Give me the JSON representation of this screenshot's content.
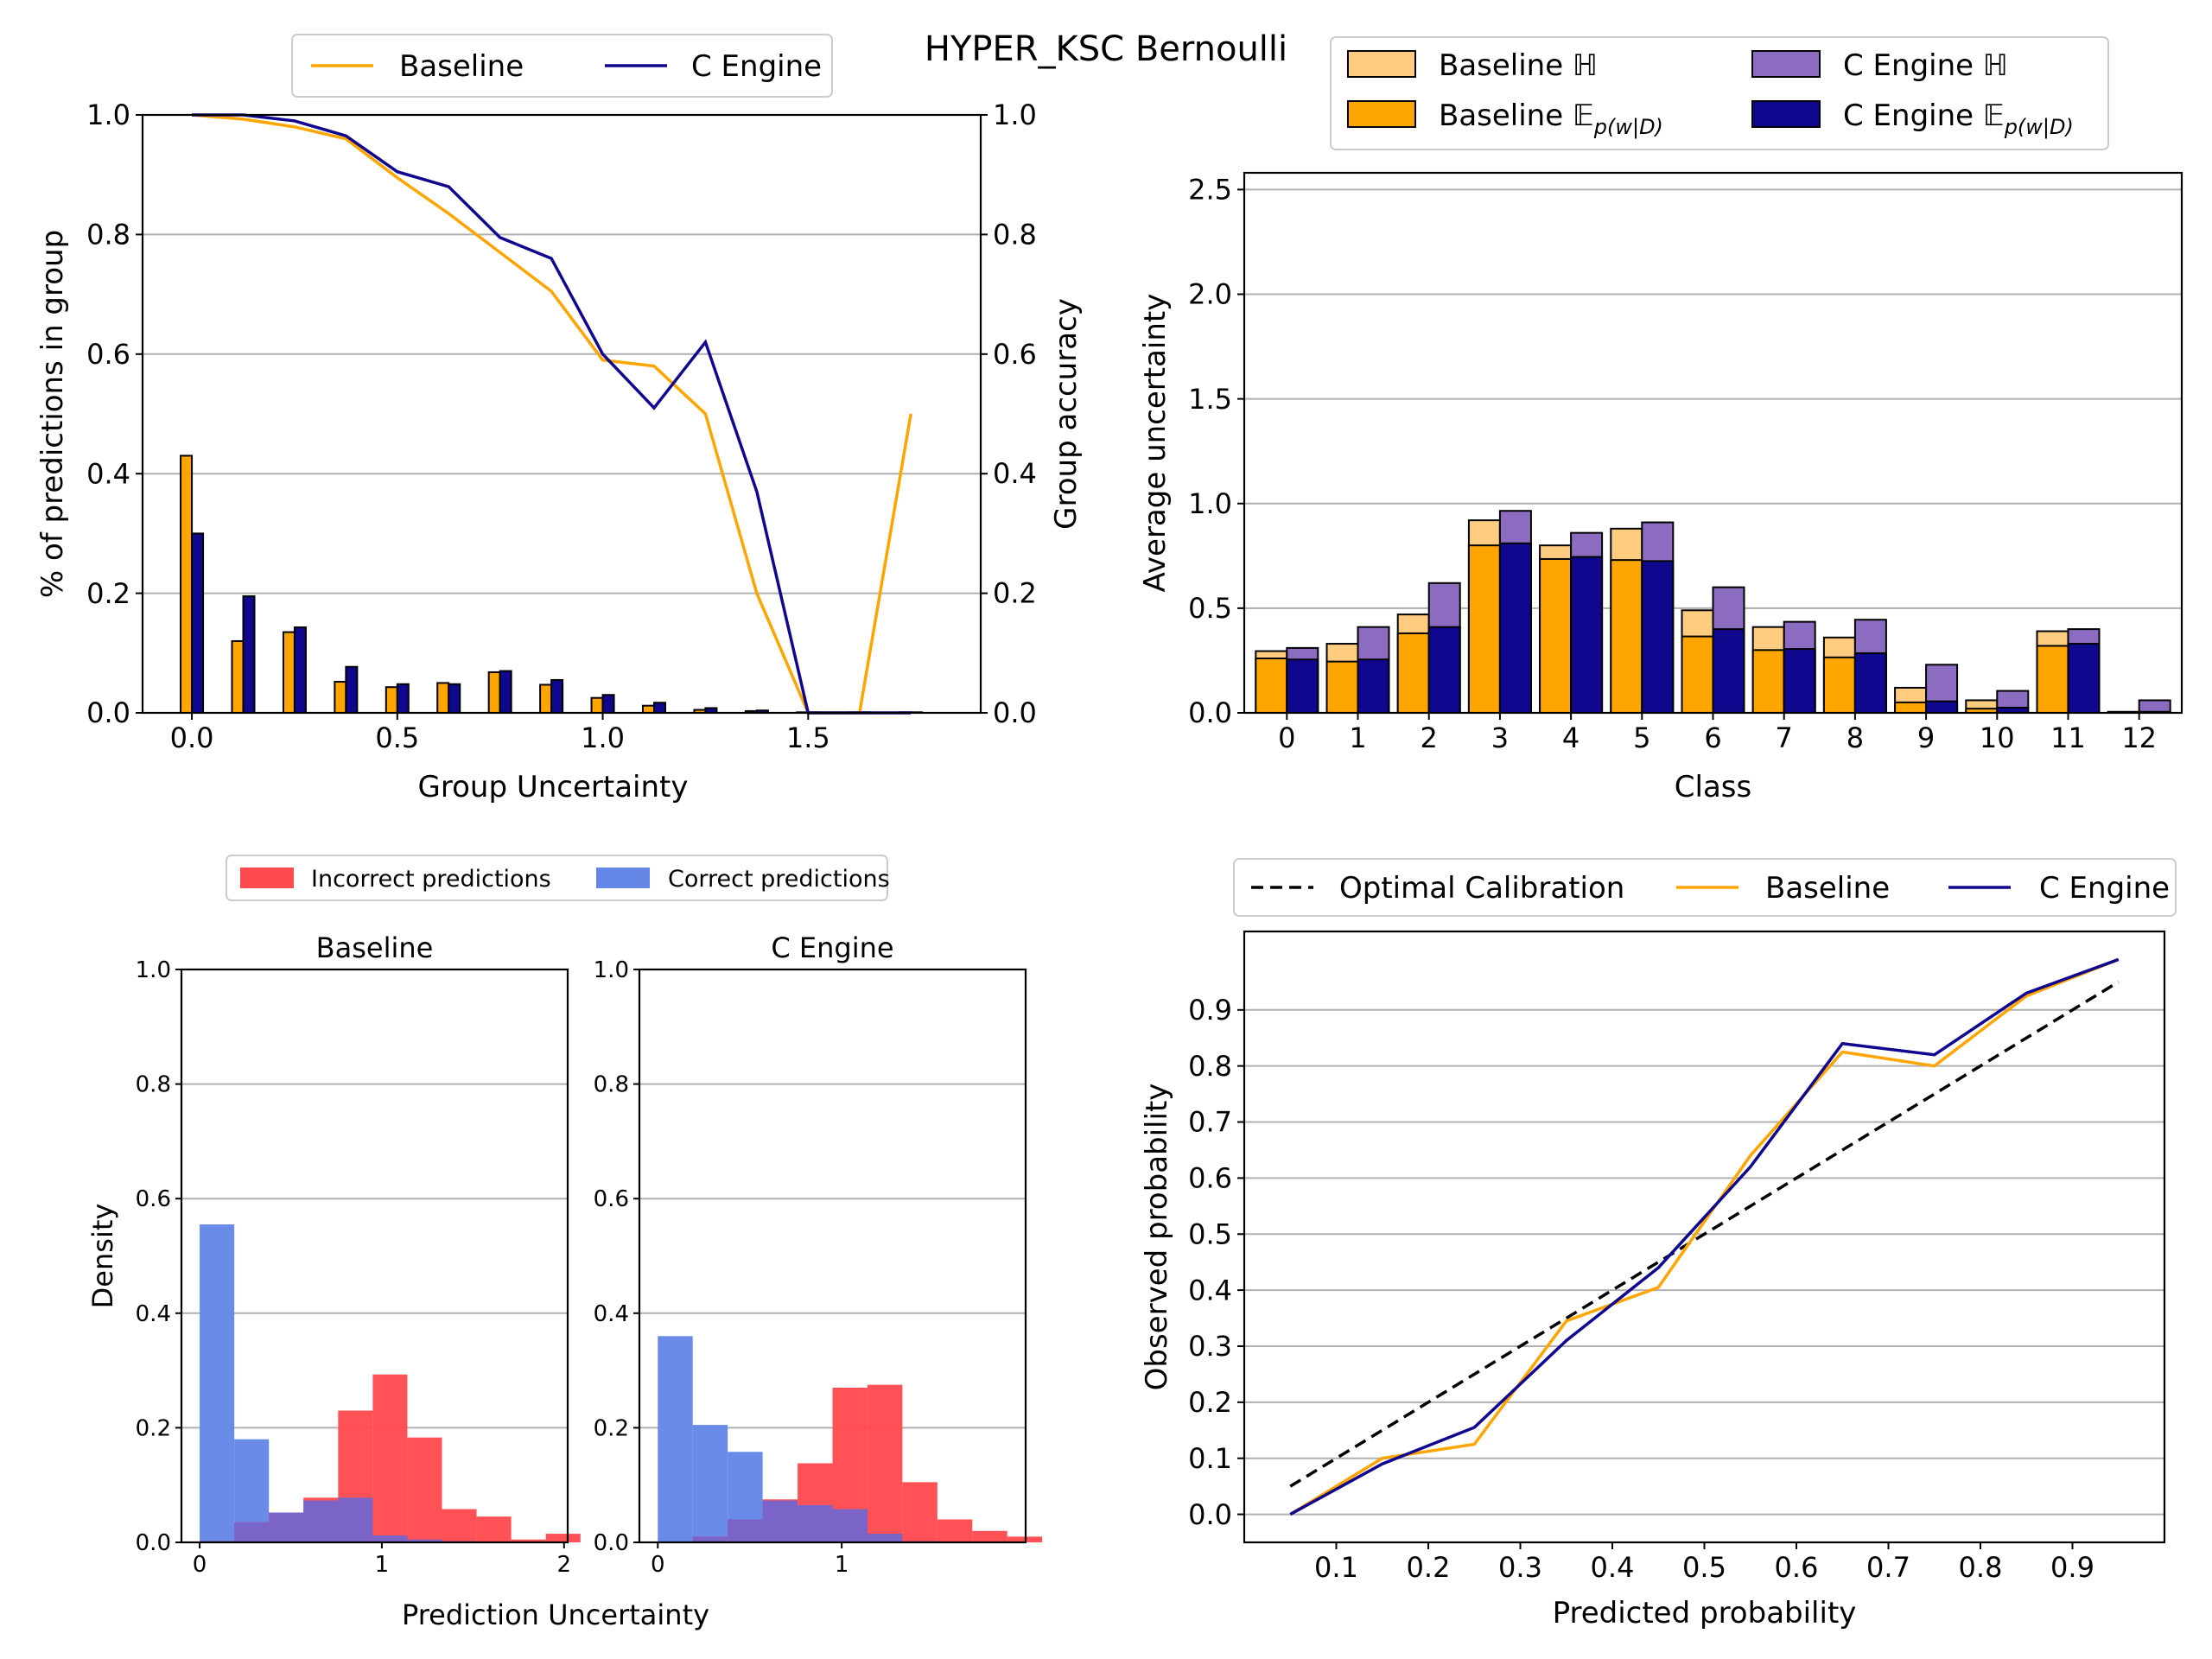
{
  "figure_title": "HYPER_KSC Bernoulli",
  "colors": {
    "baseline": "#ffa500",
    "c_engine": "#10078f",
    "baseline_light": "#ffcc80",
    "c_engine_light": "#8b6cc0",
    "incorrect": "#ff4a4f",
    "correct": "#6486e6",
    "optimal": "#000000",
    "grid": "#b0b0b0"
  },
  "chart_data": [
    {
      "id": "group_uncertainty",
      "type": "bar",
      "xlabel": "Group Uncertainty",
      "ylabel": "% of predictions in group",
      "y2label": "Group accuracy",
      "xlim": [
        -0.12,
        1.92
      ],
      "ylim": [
        0,
        1.0
      ],
      "y2lim": [
        0,
        1.0
      ],
      "xticks": [
        0.0,
        0.5,
        1.0,
        1.5
      ],
      "yticks": [
        0.0,
        0.2,
        0.4,
        0.6,
        0.8,
        1.0
      ],
      "grid": "y",
      "legend": "top-center",
      "x": [
        0.0,
        0.125,
        0.25,
        0.375,
        0.5,
        0.625,
        0.75,
        0.875,
        1.0,
        1.125,
        1.25,
        1.375,
        1.5,
        1.625,
        1.75
      ],
      "bar_series": [
        {
          "name": "Baseline",
          "values": [
            0.43,
            0.12,
            0.135,
            0.052,
            0.043,
            0.05,
            0.068,
            0.047,
            0.025,
            0.012,
            0.005,
            0.003,
            0.001,
            0.001,
            0.001
          ]
        },
        {
          "name": "C Engine",
          "values": [
            0.3,
            0.195,
            0.143,
            0.077,
            0.048,
            0.048,
            0.07,
            0.055,
            0.03,
            0.017,
            0.008,
            0.004,
            0.001,
            0.001,
            0.001
          ]
        }
      ],
      "line_series": [
        {
          "name": "Baseline",
          "x": [
            0.0,
            0.125,
            0.25,
            0.375,
            0.5,
            0.625,
            0.75,
            0.875,
            1.0,
            1.125,
            1.25,
            1.375,
            1.5,
            1.625,
            1.75
          ],
          "values": [
            1.0,
            0.993,
            0.98,
            0.96,
            0.895,
            0.835,
            0.77,
            0.705,
            0.59,
            0.58,
            0.5,
            0.2,
            0.0,
            0.0,
            0.5
          ]
        },
        {
          "name": "C Engine",
          "x": [
            0.0,
            0.125,
            0.25,
            0.375,
            0.5,
            0.625,
            0.75,
            0.875,
            1.0,
            1.125,
            1.25,
            1.375,
            1.5,
            1.625,
            1.75
          ],
          "values": [
            1.0,
            1.0,
            0.99,
            0.965,
            0.905,
            0.88,
            0.795,
            0.76,
            0.6,
            0.51,
            0.62,
            0.37,
            0.0,
            0.0,
            0.0
          ]
        }
      ]
    },
    {
      "id": "class_uncertainty",
      "type": "bar",
      "xlabel": "Class",
      "ylabel": "Average uncertainty",
      "categories": [
        "0",
        "1",
        "2",
        "3",
        "4",
        "5",
        "6",
        "7",
        "8",
        "9",
        "10",
        "11",
        "12"
      ],
      "ylim": [
        0,
        2.58
      ],
      "yticks": [
        0.0,
        0.5,
        1.0,
        1.5,
        2.0,
        2.5
      ],
      "grid": "y",
      "legend": "top",
      "series": [
        {
          "name": "Baseline ℍ",
          "values": [
            0.295,
            0.33,
            0.47,
            0.92,
            0.8,
            0.88,
            0.49,
            0.41,
            0.36,
            0.12,
            0.06,
            0.39,
            0.005
          ]
        },
        {
          "name": "Baseline 𝔼",
          "values": [
            0.26,
            0.245,
            0.38,
            0.8,
            0.735,
            0.73,
            0.365,
            0.3,
            0.265,
            0.05,
            0.02,
            0.32,
            0.002
          ]
        },
        {
          "name": "C Engine ℍ",
          "values": [
            0.31,
            0.41,
            0.62,
            0.965,
            0.86,
            0.91,
            0.6,
            0.435,
            0.445,
            0.23,
            0.105,
            0.4,
            0.06
          ]
        },
        {
          "name": "C Engine 𝔼",
          "values": [
            0.255,
            0.255,
            0.41,
            0.81,
            0.745,
            0.725,
            0.4,
            0.305,
            0.285,
            0.055,
            0.025,
            0.33,
            0.005
          ]
        }
      ],
      "legend_labels": [
        {
          "base": "Baseline ",
          "sym": "ℍ",
          "sub": ""
        },
        {
          "base": "C Engine ",
          "sym": "ℍ",
          "sub": ""
        },
        {
          "base": "Baseline ",
          "sym": "𝔼",
          "sub": "p(w|D)"
        },
        {
          "base": "C Engine ",
          "sym": "𝔼",
          "sub": "p(w|D)"
        }
      ]
    },
    {
      "id": "hist_baseline",
      "type": "bar",
      "title": "Baseline",
      "ylabel": "Density",
      "xlim": [
        -0.1,
        2.02
      ],
      "ylim": [
        0,
        1.0
      ],
      "xticks": [
        0,
        1,
        2
      ],
      "yticks": [
        0.0,
        0.2,
        0.4,
        0.6,
        0.8,
        1.0
      ],
      "grid": "y",
      "series": [
        {
          "name": "Correct predictions",
          "bins": [
            0.0,
            0.19,
            0.38,
            0.57,
            0.76,
            0.95,
            1.14,
            1.33,
            1.52,
            1.71,
            1.9
          ],
          "values": [
            0.555,
            0.18,
            0.052,
            0.073,
            0.078,
            0.012,
            0.005,
            0.002,
            0,
            0
          ]
        },
        {
          "name": "Incorrect predictions",
          "bins": [
            0.0,
            0.19,
            0.38,
            0.57,
            0.76,
            0.95,
            1.14,
            1.33,
            1.52,
            1.71,
            1.9
          ],
          "values": [
            0.002,
            0.035,
            0.052,
            0.078,
            0.23,
            0.293,
            0.183,
            0.058,
            0.045,
            0.005,
            0.015
          ]
        }
      ]
    },
    {
      "id": "hist_c_engine",
      "type": "bar",
      "title": "C Engine",
      "xlabel": "Prediction Uncertainty",
      "xlim": [
        -0.1,
        2.0
      ],
      "ylim": [
        0,
        1.0
      ],
      "xticks": [
        0,
        1
      ],
      "yticks": [
        0.0,
        0.2,
        0.4,
        0.6,
        0.8,
        1.0
      ],
      "grid": "y",
      "series": [
        {
          "name": "Correct predictions",
          "bins": [
            0.0,
            0.19,
            0.38,
            0.57,
            0.76,
            0.95,
            1.14,
            1.33,
            1.52,
            1.71,
            1.9
          ],
          "values": [
            0.36,
            0.205,
            0.158,
            0.073,
            0.065,
            0.058,
            0.015,
            0.002,
            0,
            0
          ]
        },
        {
          "name": "Incorrect predictions",
          "bins": [
            0.0,
            0.19,
            0.38,
            0.57,
            0.76,
            0.95,
            1.14,
            1.33,
            1.52,
            1.71,
            1.9
          ],
          "values": [
            0.0,
            0.01,
            0.04,
            0.075,
            0.138,
            0.27,
            0.275,
            0.105,
            0.04,
            0.02,
            0.01
          ]
        }
      ],
      "legend": "top"
    },
    {
      "id": "calibration",
      "type": "line",
      "xlabel": "Predicted probability",
      "ylabel": "Observed probability",
      "xlim": [
        -0.0,
        1.0
      ],
      "ylim": [
        -0.05,
        1.04
      ],
      "xticks": [
        0.1,
        0.2,
        0.3,
        0.4,
        0.5,
        0.6,
        0.7,
        0.8,
        0.9
      ],
      "yticks": [
        0.0,
        0.1,
        0.2,
        0.3,
        0.4,
        0.5,
        0.6,
        0.7,
        0.8,
        0.9
      ],
      "grid": "y",
      "legend": "top",
      "series": [
        {
          "name": "Optimal Calibration",
          "x": [
            0.05,
            0.95
          ],
          "values": [
            0.05,
            0.95
          ]
        },
        {
          "name": "Baseline",
          "x": [
            0.05,
            0.15,
            0.25,
            0.35,
            0.45,
            0.55,
            0.65,
            0.75,
            0.85,
            0.95
          ],
          "values": [
            0.0,
            0.1,
            0.125,
            0.345,
            0.405,
            0.64,
            0.825,
            0.8,
            0.925,
            0.99
          ]
        },
        {
          "name": "C Engine",
          "x": [
            0.05,
            0.15,
            0.25,
            0.35,
            0.45,
            0.55,
            0.65,
            0.75,
            0.85,
            0.95
          ],
          "values": [
            0.0,
            0.09,
            0.155,
            0.31,
            0.44,
            0.62,
            0.84,
            0.82,
            0.93,
            0.99
          ]
        }
      ]
    }
  ]
}
